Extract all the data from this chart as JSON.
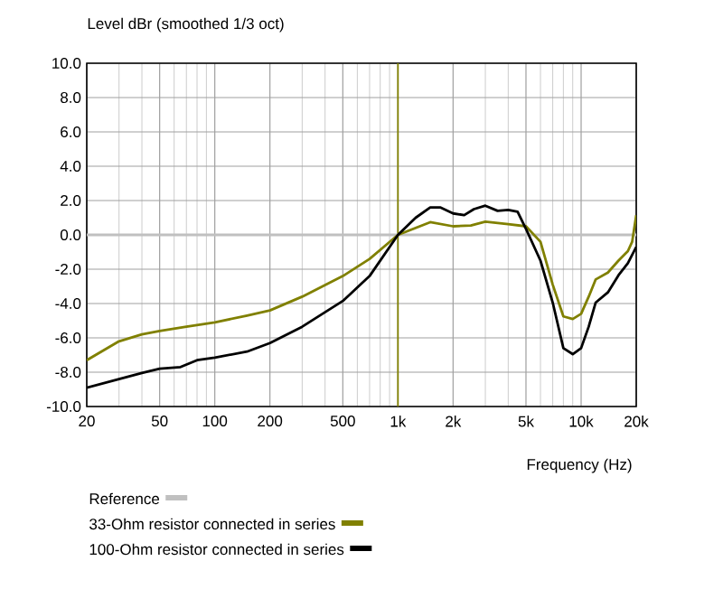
{
  "chart_data": {
    "type": "line",
    "title": "Level dBr (smoothed 1/3 oct)",
    "xlabel": "Frequency (Hz)",
    "log": "x",
    "grid": true,
    "legend": "bottom",
    "xlim": [
      20,
      20000
    ],
    "ylim": [
      -10,
      10
    ],
    "xticks": [
      20,
      50,
      100,
      200,
      500,
      {
        "value": 1000,
        "label": "1k"
      },
      {
        "value": 2000,
        "label": "2k"
      },
      {
        "value": 5000,
        "label": "5k"
      },
      {
        "value": 10000,
        "label": "10k"
      },
      {
        "value": 20000,
        "label": "20k"
      }
    ],
    "yticks": [
      {
        "value": -10,
        "label": "-10.0"
      },
      {
        "value": -8,
        "label": "-8.0"
      },
      {
        "value": -6,
        "label": "-6.0"
      },
      {
        "value": -4,
        "label": "-4.0"
      },
      {
        "value": -2,
        "label": "-2.0"
      },
      {
        "value": 0,
        "label": "0.0"
      },
      {
        "value": 2,
        "label": "2.0"
      },
      {
        "value": 4,
        "label": "4.0"
      },
      {
        "value": 6,
        "label": "6.0"
      },
      {
        "value": 8,
        "label": "8.0"
      },
      {
        "value": 10,
        "label": "10.0"
      }
    ],
    "ref_lines": [
      {
        "axis": "x",
        "value": 1000,
        "color": "#808000"
      }
    ],
    "series": [
      {
        "name": "Reference",
        "color": "#c0c0c0",
        "x": [
          20,
          20000
        ],
        "values": [
          0,
          0
        ]
      },
      {
        "name": "33-Ohm resistor connected in series",
        "color": "#808000",
        "x": [
          20,
          30,
          40,
          50,
          70,
          100,
          150,
          200,
          300,
          500,
          700,
          1000,
          1500,
          2000,
          2500,
          3000,
          4000,
          5000,
          6000,
          7000,
          8000,
          9000,
          10000,
          11000,
          12000,
          14000,
          16000,
          18000,
          19000,
          20000
        ],
        "values": [
          -7.3,
          -6.2,
          -5.8,
          -5.6,
          -5.35,
          -5.1,
          -4.7,
          -4.4,
          -3.6,
          -2.4,
          -1.4,
          0,
          0.74,
          0.5,
          0.55,
          0.77,
          0.63,
          0.5,
          -0.4,
          -2.9,
          -4.75,
          -4.9,
          -4.6,
          -3.6,
          -2.6,
          -2.2,
          -1.5,
          -0.95,
          -0.4,
          1.15
        ]
      },
      {
        "name": "100-Ohm resistor connected in series",
        "color": "#000000",
        "x": [
          20,
          30,
          40,
          50,
          65,
          80,
          100,
          150,
          200,
          300,
          500,
          700,
          1000,
          1250,
          1500,
          1700,
          2000,
          2300,
          2600,
          3000,
          3500,
          4000,
          4500,
          5000,
          6000,
          7000,
          8000,
          9000,
          10000,
          11000,
          12000,
          14000,
          16000,
          18000,
          20000
        ],
        "values": [
          -8.9,
          -8.4,
          -8.05,
          -7.8,
          -7.7,
          -7.3,
          -7.15,
          -6.8,
          -6.3,
          -5.35,
          -3.85,
          -2.4,
          0,
          1.0,
          1.6,
          1.6,
          1.25,
          1.15,
          1.5,
          1.7,
          1.4,
          1.45,
          1.35,
          0.35,
          -1.5,
          -3.95,
          -6.6,
          -6.95,
          -6.6,
          -5.35,
          -3.95,
          -3.35,
          -2.35,
          -1.65,
          -0.7
        ]
      }
    ]
  }
}
